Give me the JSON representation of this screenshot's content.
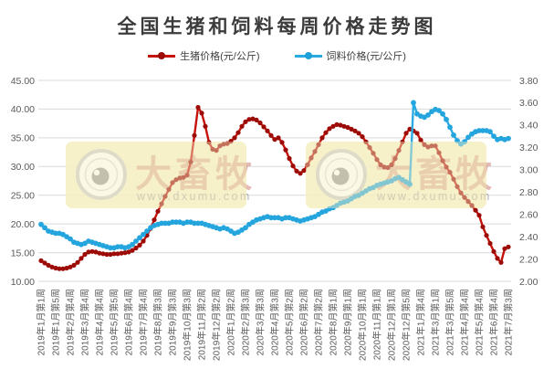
{
  "title": "全国生猪和饲料每周价格走势图",
  "legend": {
    "pig": "生猪价格(元/公斤)",
    "feed": "饲料价格(元/公斤)"
  },
  "watermark": {
    "brand": "大畜牧",
    "url": "www.dxumu.com"
  },
  "axes": {
    "left_ticks": [
      "45.00",
      "40.00",
      "35.00",
      "30.00",
      "25.00",
      "20.00",
      "15.00",
      "10.00"
    ],
    "right_ticks": [
      "3.80",
      "3.60",
      "3.40",
      "3.20",
      "3.00",
      "2.80",
      "2.60",
      "2.40",
      "2.20",
      "2.00"
    ]
  },
  "chart_data": {
    "type": "line",
    "title": "全国生猪和饲料每周价格走势图",
    "xlabel": "",
    "ylabel_left": "生猪价格(元/公斤)",
    "ylabel_right": "饲料价格(元/公斤)",
    "left_ylim": [
      10,
      45
    ],
    "right_ylim": [
      2.0,
      3.8
    ],
    "grid": true,
    "legend_position": "top",
    "label_every": 4,
    "x_labels": [
      "2019年1月第1周",
      "2019年1月第5周",
      "2019年2月第4周",
      "2019年3月第4周",
      "2019年4月第4周",
      "2019年5月第5周",
      "2019年6月第4周",
      "2019年7月第4周",
      "2019年8月第3周",
      "2019年9月第3周",
      "2019年10月第3周",
      "2019年11月第2周",
      "2019年12月第2周",
      "2020年1月第2周",
      "2020年2月第3周",
      "2020年3月第3周",
      "2020年4月第3周",
      "2020年5月第2周",
      "2020年6月第2周",
      "2020年7月第2周",
      "2020年8月第1周",
      "2020年9月第1周",
      "2020年10月第1周",
      "2020年11月第1周",
      "2020年12月第1周",
      "2020年12月第5周",
      "2021年1月第4周",
      "2021年3月第1周",
      "2021年3月第5周",
      "2021年4月第4周",
      "2021年5月第4周",
      "2021年6月第4周",
      "2021年7月第3周"
    ],
    "series": [
      {
        "name": "生猪价格(元/公斤)",
        "data_name": "pig-price-series",
        "axis": "left",
        "color": "#c5120b",
        "marker_color": "#9c0b06",
        "values": [
          13.6,
          13.2,
          12.8,
          12.5,
          12.3,
          12.2,
          12.2,
          12.3,
          12.5,
          12.8,
          13.3,
          14.0,
          14.7,
          15.1,
          15.2,
          15.1,
          14.9,
          14.8,
          14.7,
          14.7,
          14.8,
          14.8,
          14.9,
          15.0,
          15.1,
          15.4,
          15.8,
          16.3,
          17.0,
          18.0,
          19.2,
          20.7,
          22.2,
          23.5,
          24.8,
          26.0,
          27.2,
          27.7,
          28.0,
          28.1,
          28.5,
          30.8,
          35.4,
          40.3,
          39.3,
          37.0,
          34.2,
          33.0,
          32.8,
          33.6,
          33.9,
          34.0,
          34.4,
          35.0,
          35.9,
          37.0,
          37.8,
          38.2,
          38.3,
          38.1,
          37.6,
          36.9,
          36.2,
          35.4,
          34.7,
          35.0,
          34.2,
          32.9,
          31.4,
          30.1,
          29.2,
          28.8,
          29.3,
          30.3,
          31.5,
          32.6,
          33.8,
          35.0,
          35.9,
          36.6,
          37.0,
          37.3,
          37.2,
          37.0,
          36.8,
          36.5,
          36.2,
          35.8,
          35.2,
          34.3,
          33.3,
          32.3,
          31.2,
          30.3,
          29.9,
          29.8,
          30.3,
          31.4,
          32.8,
          34.3,
          35.8,
          36.5,
          36.2,
          35.8,
          34.6,
          33.8,
          33.4,
          33.6,
          33.6,
          32.4,
          31.0,
          29.9,
          29.0,
          27.8,
          26.5,
          25.4,
          24.6,
          23.9,
          23.2,
          22.4,
          21.5,
          19.5,
          18.0,
          16.6,
          15.2,
          14.0,
          13.3,
          15.7,
          16.0
        ]
      },
      {
        "name": "饲料价格(元/公斤)",
        "data_name": "feed-price-series",
        "axis": "right",
        "color": "#29abe2",
        "marker_color": "#24a5dd",
        "values": [
          2.51,
          2.48,
          2.45,
          2.44,
          2.43,
          2.43,
          2.42,
          2.4,
          2.38,
          2.35,
          2.34,
          2.33,
          2.34,
          2.36,
          2.35,
          2.34,
          2.33,
          2.32,
          2.31,
          2.3,
          2.3,
          2.31,
          2.31,
          2.3,
          2.31,
          2.33,
          2.36,
          2.39,
          2.42,
          2.45,
          2.48,
          2.5,
          2.51,
          2.52,
          2.52,
          2.52,
          2.53,
          2.53,
          2.53,
          2.52,
          2.53,
          2.53,
          2.52,
          2.52,
          2.52,
          2.51,
          2.5,
          2.49,
          2.48,
          2.47,
          2.48,
          2.47,
          2.45,
          2.43,
          2.44,
          2.46,
          2.48,
          2.51,
          2.53,
          2.55,
          2.56,
          2.57,
          2.58,
          2.57,
          2.57,
          2.57,
          2.56,
          2.57,
          2.57,
          2.56,
          2.55,
          2.54,
          2.55,
          2.56,
          2.57,
          2.58,
          2.6,
          2.62,
          2.63,
          2.65,
          2.66,
          2.68,
          2.7,
          2.71,
          2.72,
          2.74,
          2.76,
          2.77,
          2.79,
          2.81,
          2.83,
          2.84,
          2.86,
          2.87,
          2.88,
          2.89,
          2.9,
          2.92,
          2.93,
          2.91,
          2.89,
          2.87,
          3.6,
          3.5,
          3.48,
          3.47,
          3.49,
          3.52,
          3.54,
          3.53,
          3.5,
          3.45,
          3.38,
          3.31,
          3.26,
          3.23,
          3.25,
          3.29,
          3.32,
          3.34,
          3.35,
          3.35,
          3.35,
          3.34,
          3.3,
          3.27,
          3.28,
          3.27,
          3.28
        ]
      }
    ]
  }
}
